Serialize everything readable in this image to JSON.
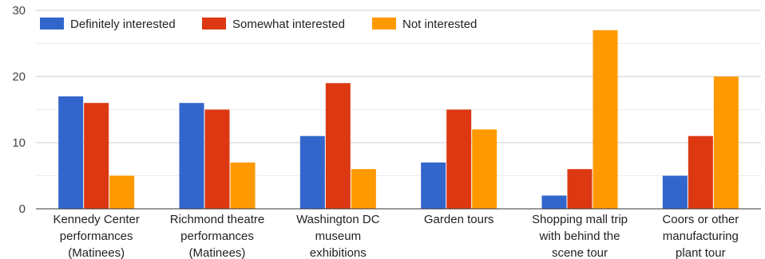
{
  "chart_data": {
    "type": "bar",
    "title": "",
    "xlabel": "",
    "ylabel": "",
    "ylim": [
      0,
      30
    ],
    "yticks": [
      0,
      10,
      20,
      30
    ],
    "grid": true,
    "legend_position": "top-left",
    "categories": [
      [
        "Kennedy Center",
        "performances",
        "(Matinees)"
      ],
      [
        "Richmond theatre",
        "performances",
        "(Matinees)"
      ],
      [
        "Washington DC",
        "museum",
        "exhibitions"
      ],
      [
        "Garden tours"
      ],
      [
        "Shopping mall trip",
        "with behind the",
        "scene tour"
      ],
      [
        "Coors or other",
        "manufacturing",
        "plant tour"
      ]
    ],
    "series": [
      {
        "name": "Definitely interested",
        "color": "#3366cc",
        "values": [
          17,
          16,
          11,
          7,
          2,
          5
        ]
      },
      {
        "name": "Somewhat interested",
        "color": "#dc3912",
        "values": [
          16,
          15,
          19,
          15,
          6,
          11
        ]
      },
      {
        "name": "Not interested",
        "color": "#ff9900",
        "values": [
          5,
          7,
          6,
          12,
          27,
          20
        ]
      }
    ]
  }
}
